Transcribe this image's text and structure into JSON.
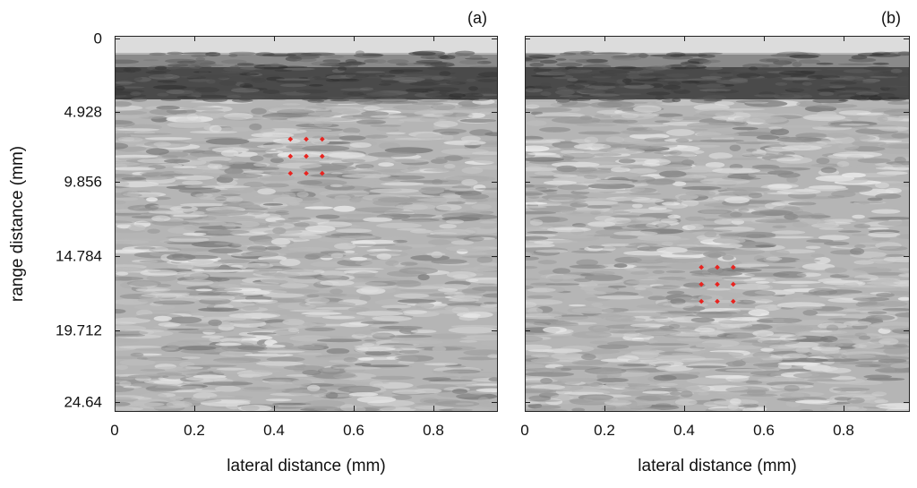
{
  "figure": {
    "panels": [
      {
        "tag": "(a)",
        "marker_grid": {
          "x_mm": [
            0.44,
            0.48,
            0.52
          ],
          "y_mm": [
            7.2,
            8.4,
            9.6
          ]
        }
      },
      {
        "tag": "(b)",
        "marker_grid": {
          "x_mm": [
            0.44,
            0.48,
            0.52
          ],
          "y_mm": [
            16.2,
            17.4,
            18.6
          ]
        }
      }
    ],
    "y_axis_label": "range distance (mm)",
    "x_axis_label": "lateral distance (mm)",
    "y_ticks": [
      "0",
      "4.928",
      "9.856",
      "14.784",
      "19.712",
      "24.64"
    ],
    "x_ticks": [
      "0",
      "0.2",
      "0.4",
      "0.6",
      "0.8"
    ],
    "x_range_mm": [
      0,
      0.96
    ],
    "y_range_mm": [
      0,
      26.3
    ],
    "marker_color": "#e8231f",
    "colormap": "grayscale"
  }
}
